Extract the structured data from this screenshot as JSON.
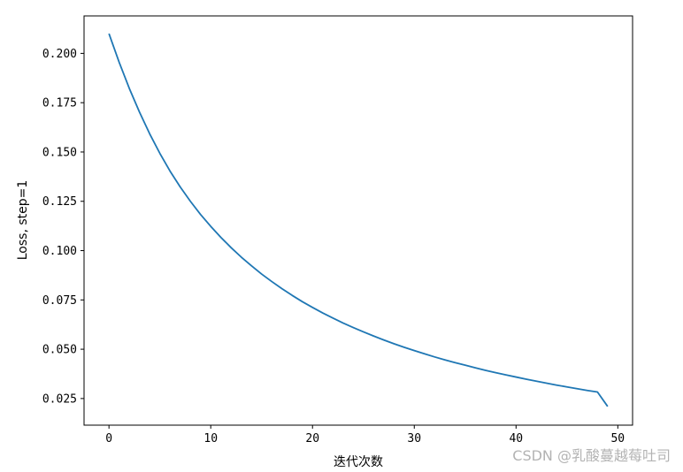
{
  "chart_data": {
    "type": "line",
    "title": "",
    "xlabel": "迭代次数",
    "ylabel": "Loss, step=1",
    "xlim": [
      -2.45,
      51.45
    ],
    "ylim": [
      0.0115,
      0.219
    ],
    "xticks": [
      0,
      10,
      20,
      30,
      40,
      50
    ],
    "xtick_labels": [
      "0",
      "10",
      "20",
      "30",
      "40",
      "50"
    ],
    "yticks": [
      0.025,
      0.05,
      0.075,
      0.1,
      0.125,
      0.15,
      0.175,
      0.2
    ],
    "ytick_labels": [
      "0.025",
      "0.050",
      "0.075",
      "0.100",
      "0.125",
      "0.150",
      "0.175",
      "0.200"
    ],
    "grid": false,
    "legend": "none",
    "series": [
      {
        "color": "#1f77b4",
        "x": [
          0,
          1,
          2,
          3,
          4,
          5,
          6,
          7,
          8,
          9,
          10,
          11,
          12,
          13,
          14,
          15,
          16,
          17,
          18,
          19,
          20,
          21,
          22,
          23,
          24,
          25,
          26,
          27,
          28,
          29,
          30,
          31,
          32,
          33,
          34,
          35,
          36,
          37,
          38,
          39,
          40,
          41,
          42,
          43,
          44,
          45,
          46,
          47,
          48,
          49
        ],
        "y": [
          0.21,
          0.1955,
          0.1822,
          0.1702,
          0.1592,
          0.1493,
          0.1403,
          0.1323,
          0.125,
          0.1183,
          0.1123,
          0.1067,
          0.1015,
          0.0967,
          0.0923,
          0.0881,
          0.0843,
          0.0807,
          0.0773,
          0.0741,
          0.0712,
          0.0684,
          0.0658,
          0.0633,
          0.061,
          0.0588,
          0.0567,
          0.0547,
          0.0528,
          0.051,
          0.0493,
          0.0477,
          0.0461,
          0.0446,
          0.0432,
          0.0419,
          0.0406,
          0.0393,
          0.0381,
          0.037,
          0.0359,
          0.0348,
          0.0338,
          0.0328,
          0.0318,
          0.0309,
          0.03,
          0.0291,
          0.0283,
          0.021
        ]
      }
    ]
  },
  "watermark": "CSDN @乳酸蔓越莓吐司"
}
